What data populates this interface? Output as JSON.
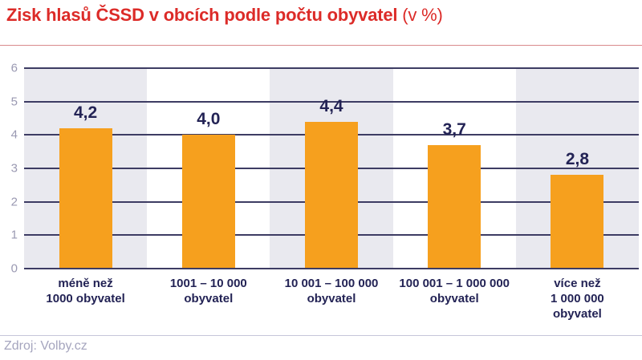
{
  "title": {
    "main": "Zisk hlasů ČSSD v obcích podle počtu obyvatel",
    "suffix": " (v %)"
  },
  "source": "Zdroj: Volby.cz",
  "colors": {
    "title_red": "#dc2b28",
    "bar_orange": "#f6a01e",
    "gridline_navy": "#3d3c63",
    "label_navy": "#232355",
    "tick_gray": "#9a99b2",
    "band_gray": "#e9e9ef",
    "source_gray": "#a5a5be"
  },
  "chart_data": {
    "type": "bar",
    "title": "Zisk hlasů ČSSD v obcích podle počtu obyvatel (v %)",
    "categories": [
      "méně než\n1000 obyvatel",
      "1001 – 10 000\nobyvatel",
      "10 001 – 100 000\nobyvatel",
      "100 001 – 1 000 000\nobyvatel",
      "více než\n1 000 000\nobyvatel"
    ],
    "values": [
      4.2,
      4.0,
      4.4,
      3.7,
      2.8
    ],
    "value_labels": [
      "4,2",
      "4,0",
      "4,4",
      "3,7",
      "2,8"
    ],
    "xlabel": "",
    "ylabel": "",
    "ylim": [
      0,
      6
    ],
    "yticks": [
      0,
      1,
      2,
      3,
      4,
      5,
      6
    ],
    "grid": "horizontal",
    "legend": "none",
    "background_bands": "alternating gray/white per category"
  }
}
